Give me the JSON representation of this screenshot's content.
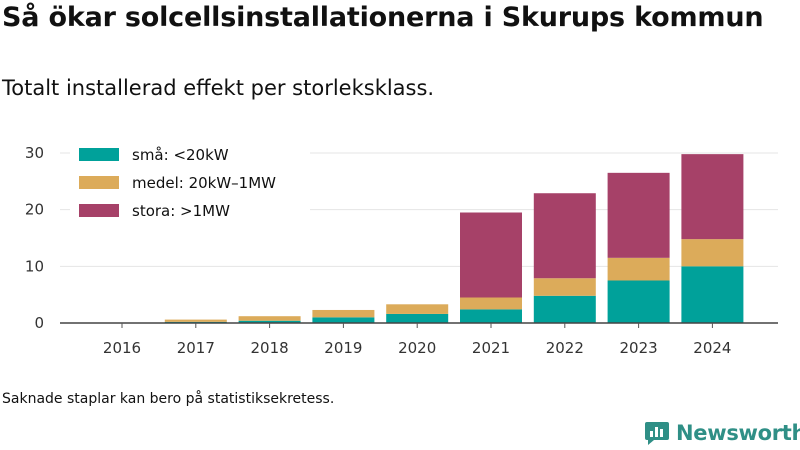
{
  "header": {
    "title": "Så ökar solcellsinstallationerna i Skurups kommun",
    "subtitle": "Totalt installerad effekt per storleksklass."
  },
  "footer": {
    "note": "Saknade staplar kan bero på statistiksekretess.",
    "brand": "Newsworthy"
  },
  "chart_data": {
    "type": "bar",
    "stacked": true,
    "categories": [
      "2016",
      "2017",
      "2018",
      "2019",
      "2020",
      "2021",
      "2022",
      "2023",
      "2024"
    ],
    "series": [
      {
        "name": "små: <20kW",
        "color": "#00a19a",
        "values": [
          0.0,
          0.2,
          0.4,
          1.0,
          1.6,
          2.4,
          4.8,
          7.5,
          10.0
        ]
      },
      {
        "name": "medel: 20kW–1MW",
        "color": "#dcab5a",
        "values": [
          0.0,
          0.4,
          0.8,
          1.3,
          1.7,
          2.1,
          3.1,
          4.0,
          4.8
        ]
      },
      {
        "name": "stora: >1MW",
        "color": "#a64168",
        "values": [
          0.0,
          0.0,
          0.0,
          0.0,
          0.0,
          15.0,
          15.0,
          15.0,
          15.0
        ]
      }
    ],
    "ylim": [
      0,
      30
    ],
    "yticks": [
      0,
      10,
      20,
      30
    ],
    "grid": true,
    "legend": "top-left",
    "xlabel": "",
    "ylabel": ""
  }
}
